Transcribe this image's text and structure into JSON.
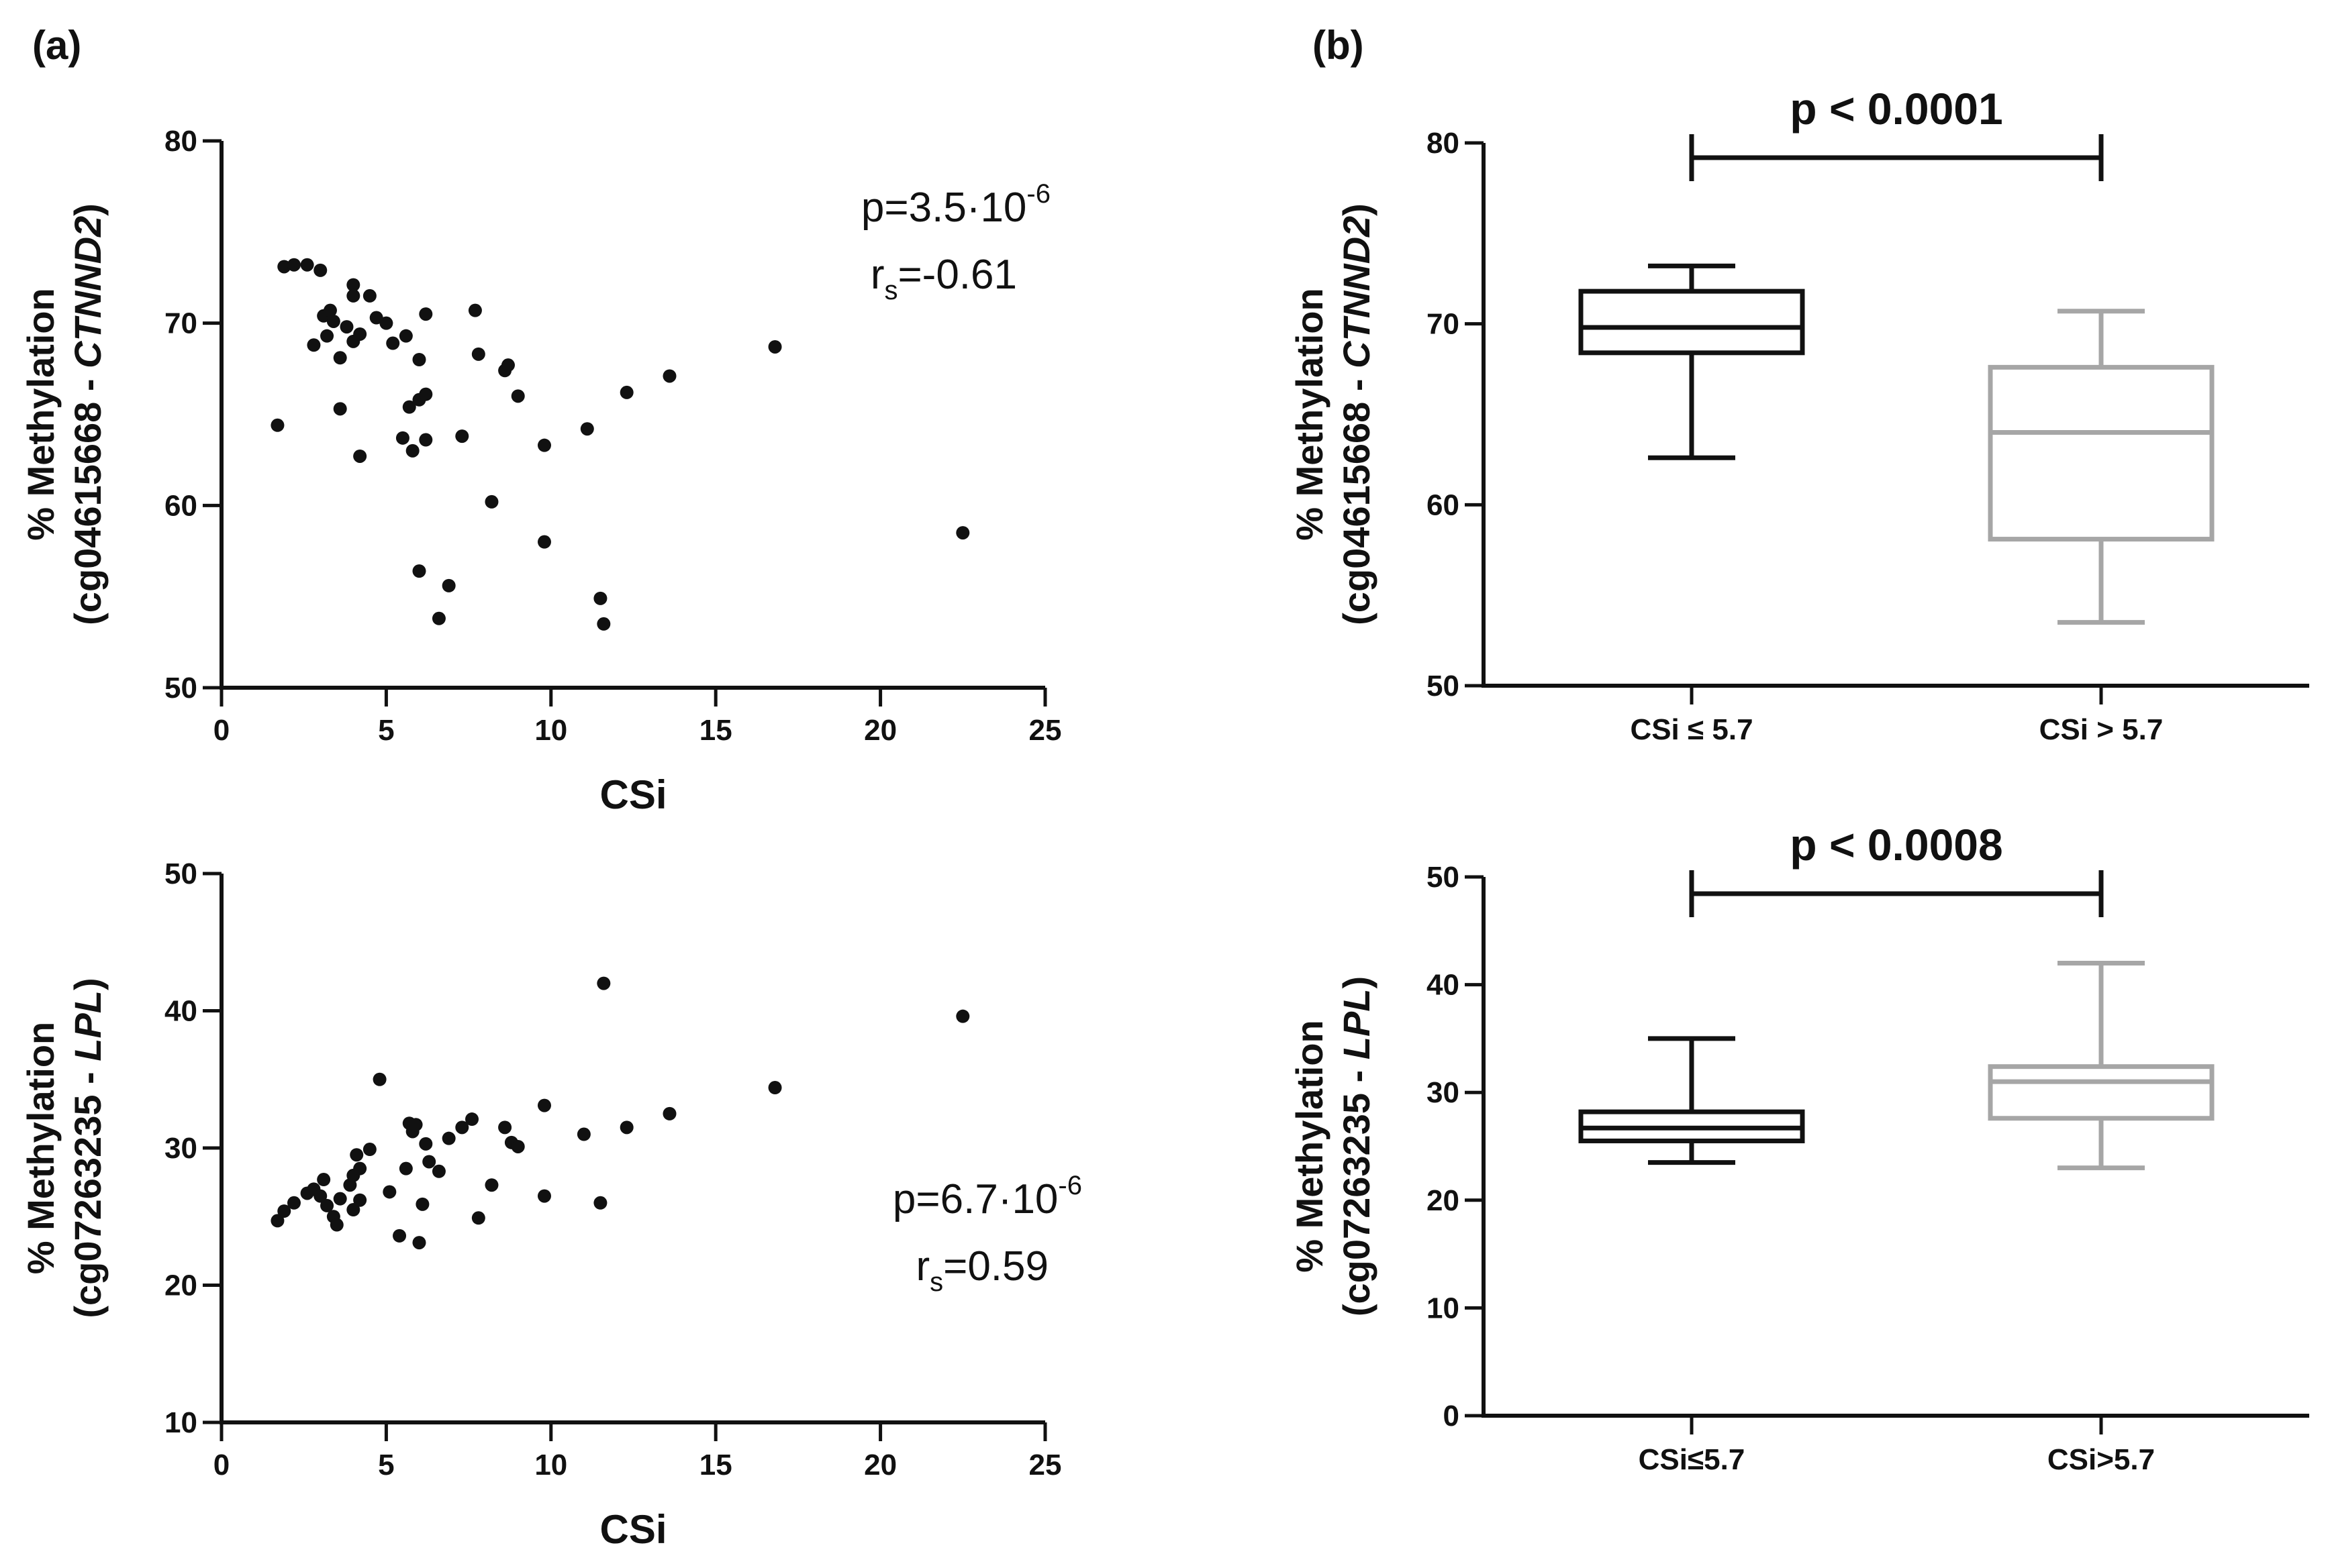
{
  "panels": {
    "a": "(a)",
    "b": "(b)"
  },
  "colors": {
    "black": "#111111",
    "gray": "#a6a6a6"
  },
  "chart_data": [
    {
      "type": "scatter",
      "id": "a_top",
      "xlabel": "CSi",
      "ylabel_line1": "% Methylation",
      "ylabel_line2_pre": "(cg04615668 - ",
      "ylabel_gene": "CTNND2",
      "ylabel_line2_post": ")",
      "xlim": [
        0,
        25
      ],
      "ylim": [
        50,
        80
      ],
      "xticks": [
        0,
        5,
        10,
        15,
        20,
        25
      ],
      "yticks": [
        50,
        60,
        70,
        80
      ],
      "annotation": {
        "p_prefix": "p=3.5·10",
        "p_exp": "-6",
        "r_prefix": "r",
        "r_sub": "s",
        "r_value": "=-0.61"
      },
      "points": [
        [
          1.7,
          64.4
        ],
        [
          1.9,
          73.1
        ],
        [
          2.2,
          73.2
        ],
        [
          2.6,
          73.2
        ],
        [
          2.8,
          68.8
        ],
        [
          3.0,
          72.9
        ],
        [
          3.1,
          70.4
        ],
        [
          3.2,
          69.3
        ],
        [
          3.3,
          70.7
        ],
        [
          3.4,
          70.1
        ],
        [
          3.6,
          68.1
        ],
        [
          3.6,
          65.3
        ],
        [
          3.8,
          69.8
        ],
        [
          4.0,
          72.1
        ],
        [
          4.0,
          71.5
        ],
        [
          4.0,
          69.0
        ],
        [
          4.2,
          69.4
        ],
        [
          4.2,
          62.7
        ],
        [
          4.5,
          71.5
        ],
        [
          4.7,
          70.3
        ],
        [
          5.0,
          70.0
        ],
        [
          5.2,
          68.9
        ],
        [
          5.5,
          63.7
        ],
        [
          5.6,
          69.3
        ],
        [
          5.7,
          65.4
        ],
        [
          5.8,
          63.0
        ],
        [
          6.0,
          65.8
        ],
        [
          6.0,
          68.0
        ],
        [
          6.0,
          56.4
        ],
        [
          6.2,
          63.6
        ],
        [
          6.2,
          66.1
        ],
        [
          6.2,
          70.5
        ],
        [
          6.6,
          53.8
        ],
        [
          6.9,
          55.6
        ],
        [
          7.3,
          63.8
        ],
        [
          7.7,
          70.7
        ],
        [
          7.8,
          68.3
        ],
        [
          8.2,
          60.2
        ],
        [
          8.6,
          67.4
        ],
        [
          8.7,
          67.7
        ],
        [
          9.0,
          66.0
        ],
        [
          9.8,
          63.3
        ],
        [
          9.8,
          58.0
        ],
        [
          11.1,
          64.2
        ],
        [
          11.5,
          54.9
        ],
        [
          11.6,
          53.5
        ],
        [
          12.3,
          66.2
        ],
        [
          13.6,
          67.1
        ],
        [
          16.8,
          68.7
        ],
        [
          22.5,
          58.5
        ]
      ]
    },
    {
      "type": "scatter",
      "id": "a_bottom",
      "xlabel": "CSi",
      "ylabel_line1": "% Methylation",
      "ylabel_line2_pre": "(cg07263235 - ",
      "ylabel_gene": "LPL",
      "ylabel_line2_post": ")",
      "xlim": [
        0,
        25
      ],
      "ylim": [
        10,
        50
      ],
      "xticks": [
        0,
        5,
        10,
        15,
        20,
        25
      ],
      "yticks": [
        10,
        20,
        30,
        40,
        50
      ],
      "annotation": {
        "p_prefix": "p=6.7·10",
        "p_exp": "-6",
        "r_prefix": "r",
        "r_sub": "s",
        "r_value": "=0.59"
      },
      "points": [
        [
          1.7,
          24.7
        ],
        [
          1.9,
          25.4
        ],
        [
          2.2,
          26.0
        ],
        [
          2.6,
          26.7
        ],
        [
          2.8,
          27.0
        ],
        [
          3.0,
          26.5
        ],
        [
          3.1,
          27.7
        ],
        [
          3.2,
          25.8
        ],
        [
          3.4,
          25.0
        ],
        [
          3.5,
          24.4
        ],
        [
          3.6,
          26.3
        ],
        [
          3.9,
          27.3
        ],
        [
          4.0,
          25.5
        ],
        [
          4.0,
          28.0
        ],
        [
          4.1,
          29.5
        ],
        [
          4.2,
          28.5
        ],
        [
          4.2,
          26.2
        ],
        [
          4.5,
          29.9
        ],
        [
          4.8,
          35.0
        ],
        [
          5.1,
          26.8
        ],
        [
          5.4,
          23.6
        ],
        [
          5.6,
          28.5
        ],
        [
          5.7,
          31.8
        ],
        [
          5.8,
          31.2
        ],
        [
          5.9,
          31.7
        ],
        [
          6.0,
          23.1
        ],
        [
          6.1,
          25.9
        ],
        [
          6.2,
          30.3
        ],
        [
          6.3,
          29.0
        ],
        [
          6.6,
          28.3
        ],
        [
          6.9,
          30.7
        ],
        [
          7.3,
          31.5
        ],
        [
          7.6,
          32.1
        ],
        [
          7.8,
          24.9
        ],
        [
          8.2,
          27.3
        ],
        [
          8.6,
          31.5
        ],
        [
          8.8,
          30.4
        ],
        [
          9.0,
          30.1
        ],
        [
          9.8,
          33.1
        ],
        [
          9.8,
          26.5
        ],
        [
          11.0,
          31.0
        ],
        [
          11.5,
          26.0
        ],
        [
          11.6,
          42.0
        ],
        [
          12.3,
          31.5
        ],
        [
          13.6,
          32.5
        ],
        [
          16.8,
          34.4
        ],
        [
          22.5,
          39.6
        ]
      ]
    },
    {
      "type": "box",
      "id": "b_top",
      "ylabel_line1": "% Methylation",
      "ylabel_line2_pre": "(cg04615668 - ",
      "ylabel_gene": "CTNND2",
      "ylabel_line2_post": ")",
      "ylim": [
        50,
        80
      ],
      "yticks": [
        50,
        60,
        70,
        80
      ],
      "p_label": "p < 0.0001",
      "groups": [
        {
          "label": "CSi ≤ 5.7",
          "min": 62.6,
          "q1": 68.4,
          "median": 69.8,
          "q3": 71.8,
          "max": 73.2,
          "color": "#111111"
        },
        {
          "label": "CSi > 5.7",
          "min": 53.5,
          "q1": 58.1,
          "median": 64.0,
          "q3": 67.6,
          "max": 70.7,
          "color": "#a6a6a6"
        }
      ]
    },
    {
      "type": "box",
      "id": "b_bottom",
      "ylabel_line1": "% Methylation",
      "ylabel_line2_pre": "(cg07263235 - ",
      "ylabel_gene": "LPL",
      "ylabel_line2_post": ")",
      "ylim": [
        0,
        50
      ],
      "yticks": [
        0,
        10,
        20,
        30,
        40,
        50
      ],
      "p_label": "p < 0.0008",
      "groups": [
        {
          "label": "CSi≤5.7",
          "min": 23.5,
          "q1": 25.5,
          "median": 26.7,
          "q3": 28.2,
          "max": 35.0,
          "color": "#111111"
        },
        {
          "label": "CSi>5.7",
          "min": 23.0,
          "q1": 27.6,
          "median": 31.0,
          "q3": 32.4,
          "max": 42.0,
          "color": "#a6a6a6"
        }
      ]
    }
  ]
}
